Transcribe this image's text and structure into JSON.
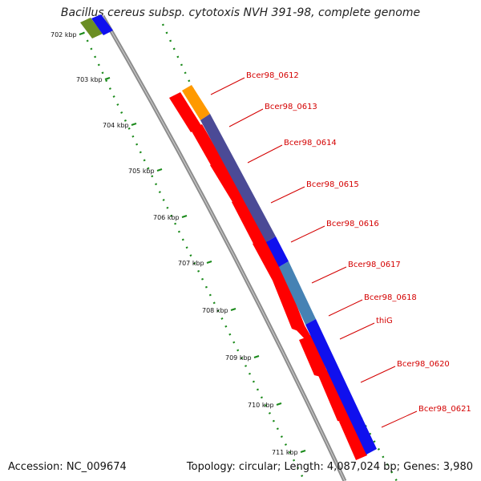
{
  "title": "Bacillus cereus subsp. cytotoxis NVH 391-98, complete genome",
  "footer": {
    "accession": "Accession: NC_009674",
    "summary": "Topology: circular; Length: 4,087,024 bp; Genes: 3,980"
  },
  "ticks": [
    "702 kbp",
    "703 kbp",
    "704 kbp",
    "705 kbp",
    "706 kbp",
    "707 kbp",
    "708 kbp",
    "709 kbp",
    "710 kbp",
    "711 kbp"
  ],
  "colors": {
    "backbone": "#8c8c8c",
    "tick": "#1a8a1a",
    "label": "#d40000",
    "cds_red": "#ff0000",
    "orange": "#ff9900",
    "slate": "#4b4a96",
    "blue": "#1010ee",
    "steel": "#4682b4",
    "olive": "#6b8e23"
  },
  "genes": [
    "Bcer98_0612",
    "Bcer98_0613",
    "Bcer98_0614",
    "Bcer98_0615",
    "Bcer98_0616",
    "Bcer98_0617",
    "Bcer98_0618",
    "thiG",
    "Bcer98_0620",
    "Bcer98_0621"
  ]
}
